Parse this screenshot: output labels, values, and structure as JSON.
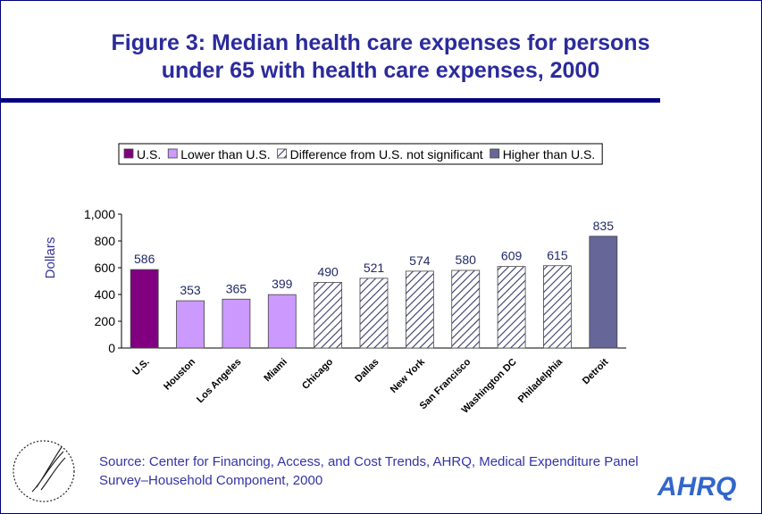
{
  "chart_data": {
    "type": "bar",
    "title": "Figure 3: Median health care expenses for persons under 65 with health care expenses, 2000",
    "ylabel": "Dollars",
    "categories": [
      "U.S.",
      "Houston",
      "Los Angeles",
      "Miami",
      "Chicago",
      "Dallas",
      "New York",
      "San Francisco",
      "Washington DC",
      "Philadelphia",
      "Detroit"
    ],
    "values": [
      586,
      353,
      365,
      399,
      490,
      521,
      574,
      580,
      609,
      615,
      835
    ],
    "groups": [
      0,
      1,
      1,
      1,
      2,
      2,
      2,
      2,
      2,
      2,
      3
    ],
    "legend": [
      {
        "name": "U.S.",
        "color": "#800080"
      },
      {
        "name": "Lower than U.S.",
        "color": "#cc99ff"
      },
      {
        "name": "Difference from U.S. not significant",
        "pattern": "hatch"
      },
      {
        "name": "Higher than U.S.",
        "color": "#666699"
      }
    ],
    "ylim": [
      0,
      1000
    ],
    "yticks": [
      0,
      200,
      400,
      600,
      800,
      {
        "value": 1000,
        "label": "1,000"
      }
    ],
    "source": "Source: Center for Financing, Access, and Cost Trends, AHRQ, Medical Expenditure Panel Survey–Household Component, 2000"
  },
  "logo": "AHRQ"
}
